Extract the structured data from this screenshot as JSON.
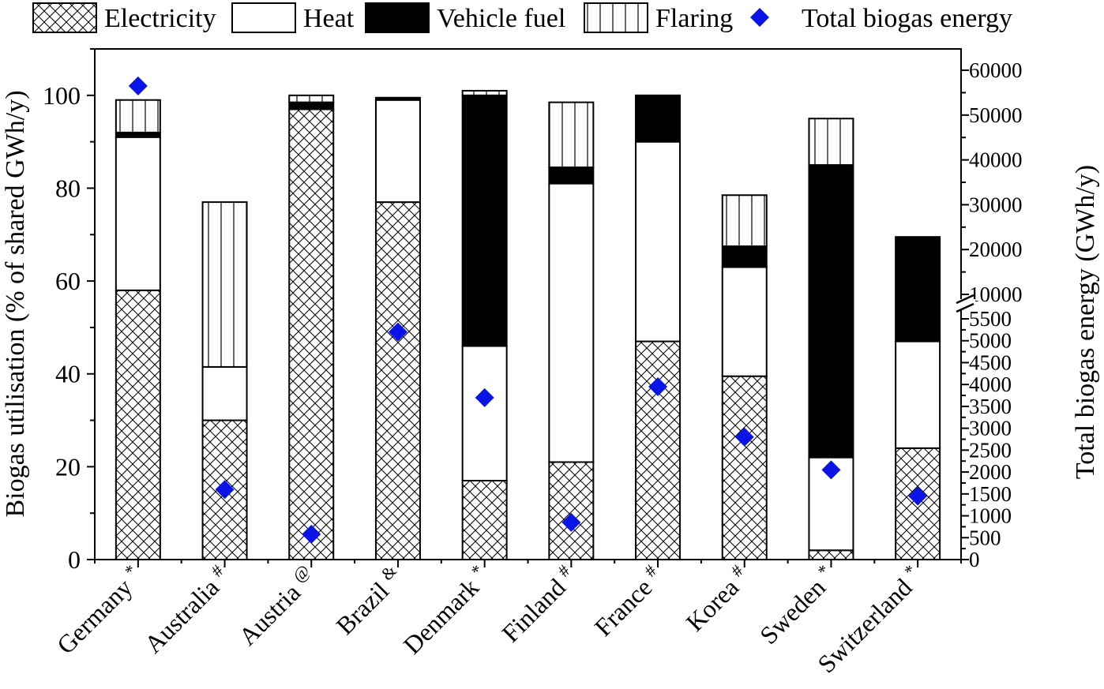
{
  "chart_data": {
    "type": "bar",
    "stacked": true,
    "categories": [
      "Germany",
      "Australia",
      "Austria",
      "Brazil",
      "Denmark",
      "Finland",
      "France",
      "Korea",
      "Sweden",
      "Switzerland"
    ],
    "category_marks": [
      "*",
      "#",
      "@",
      "&",
      "*",
      "#",
      "#",
      "#",
      "*",
      "*"
    ],
    "series": [
      {
        "name": "Electricity",
        "pattern": "crosshatch",
        "values": [
          58,
          30,
          97,
          77,
          17,
          21,
          47,
          39.5,
          2,
          24
        ]
      },
      {
        "name": "Heat",
        "pattern": "white",
        "values": [
          33,
          11.5,
          0,
          22,
          29,
          60,
          43,
          23.5,
          20,
          23
        ]
      },
      {
        "name": "Vehicle fuel",
        "pattern": "black",
        "values": [
          1,
          0,
          1.5,
          0.5,
          54,
          3.5,
          10,
          4.5,
          63,
          22.5
        ]
      },
      {
        "name": "Flaring",
        "pattern": "vertical-lines",
        "values": [
          7,
          35.5,
          1.5,
          0,
          1,
          14,
          0,
          11,
          10,
          0
        ]
      }
    ],
    "secondary_series": {
      "name": "Total biogas energy",
      "marker": "diamond",
      "color": "#0a14e6",
      "values": [
        56500,
        1600,
        580,
        5200,
        3700,
        850,
        3950,
        2800,
        2050,
        1450
      ]
    },
    "ylabel": "Biogas utilisation (% of shared GWh/y)",
    "y2label": "Total biogas energy (GWh/y)",
    "ylim": [
      0,
      110
    ],
    "y_ticks": [
      0,
      20,
      40,
      60,
      80,
      100
    ],
    "y2_broken_axis": true,
    "y2_lower_ticks": [
      0,
      500,
      1000,
      1500,
      2000,
      2500,
      3000,
      3500,
      4000,
      4500,
      5000,
      5500
    ],
    "y2_upper_ticks": [
      10000,
      20000,
      30000,
      40000,
      50000,
      60000
    ],
    "legend_position": "top",
    "grid": false
  }
}
